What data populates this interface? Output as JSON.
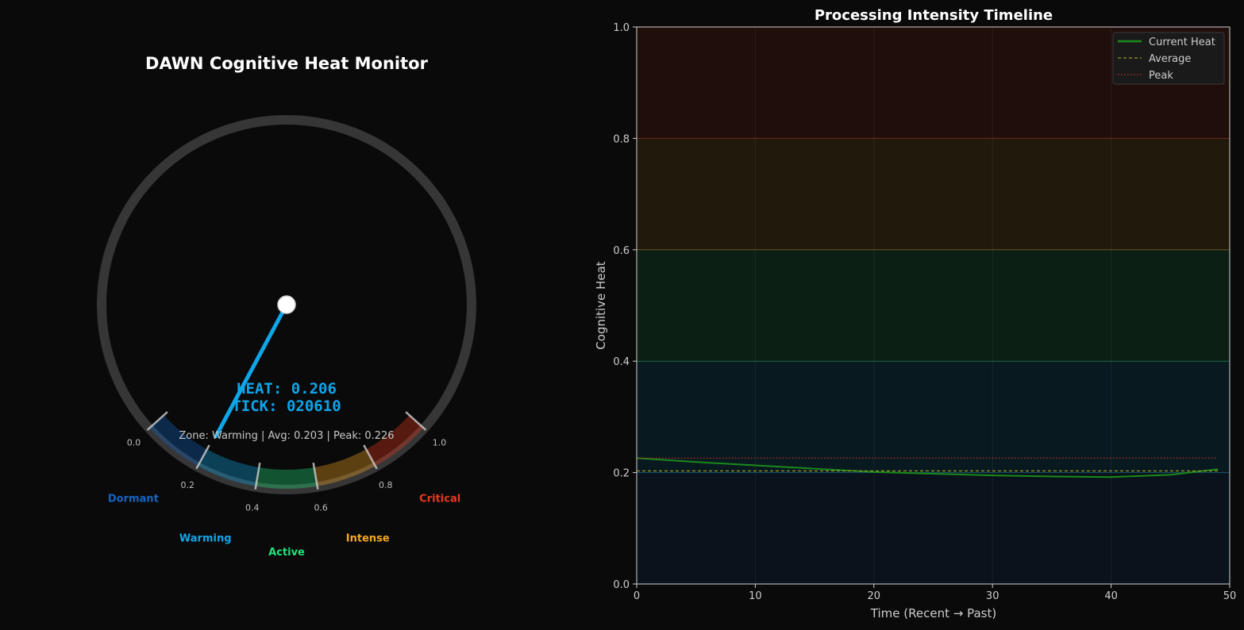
{
  "colors": {
    "background": "#0a0a0a",
    "dormant": "#1565c0",
    "warming": "#0ea5e9",
    "active": "#22e07a",
    "intense": "#f5a623",
    "critical": "#e8391c",
    "needle": "#0ea5e9"
  },
  "chart_data": [
    {
      "type": "gauge",
      "title": "DAWN Cognitive Heat Monitor",
      "value": 0.206,
      "range": [
        0,
        1
      ],
      "readout": {
        "heat_text": "HEAT: 0.206",
        "tick_text": "TICK: 020610",
        "status_text": "Zone: Warming | Avg: 0.203 | Peak: 0.226"
      },
      "tick_labels": [
        "0.0",
        "0.2",
        "0.4",
        "0.6",
        "0.8",
        "1.0"
      ],
      "zones": [
        {
          "name": "Dormant",
          "from": 0.0,
          "to": 0.2,
          "color": "#1565c0"
        },
        {
          "name": "Warming",
          "from": 0.2,
          "to": 0.4,
          "color": "#0ea5e9"
        },
        {
          "name": "Active",
          "from": 0.4,
          "to": 0.6,
          "color": "#22e07a"
        },
        {
          "name": "Intense",
          "from": 0.6,
          "to": 0.8,
          "color": "#f5a623"
        },
        {
          "name": "Critical",
          "from": 0.8,
          "to": 1.0,
          "color": "#e8391c"
        }
      ]
    },
    {
      "type": "line",
      "title": "Processing Intensity Timeline",
      "xlabel": "Time (Recent → Past)",
      "ylabel": "Cognitive Heat",
      "xlim": [
        0,
        50
      ],
      "ylim": [
        0,
        1
      ],
      "xticks": [
        0,
        10,
        20,
        30,
        40,
        50
      ],
      "yticks": [
        "0.0",
        "0.2",
        "0.4",
        "0.6",
        "0.8",
        "1.0"
      ],
      "grid": true,
      "legend_position": "top-right",
      "bands": [
        {
          "from": 0.0,
          "to": 0.2,
          "color": "#1565c0"
        },
        {
          "from": 0.2,
          "to": 0.4,
          "color": "#0ea5e9"
        },
        {
          "from": 0.4,
          "to": 0.6,
          "color": "#22e07a"
        },
        {
          "from": 0.6,
          "to": 0.8,
          "color": "#f5a623"
        },
        {
          "from": 0.8,
          "to": 1.0,
          "color": "#e8391c"
        }
      ],
      "series": [
        {
          "name": "Current Heat",
          "style": "solid",
          "color": "#1a8a1a",
          "x": [
            0,
            5,
            10,
            15,
            20,
            25,
            30,
            35,
            40,
            45,
            49
          ],
          "y": [
            0.226,
            0.219,
            0.213,
            0.207,
            0.201,
            0.198,
            0.195,
            0.193,
            0.192,
            0.196,
            0.206
          ]
        },
        {
          "name": "Average",
          "style": "dashed",
          "color": "#9a9a2a",
          "x": [
            0,
            49
          ],
          "y": [
            0.203,
            0.203
          ]
        },
        {
          "name": "Peak",
          "style": "dotted",
          "color": "#c0302a",
          "x": [
            0,
            49
          ],
          "y": [
            0.226,
            0.226
          ]
        }
      ]
    }
  ]
}
